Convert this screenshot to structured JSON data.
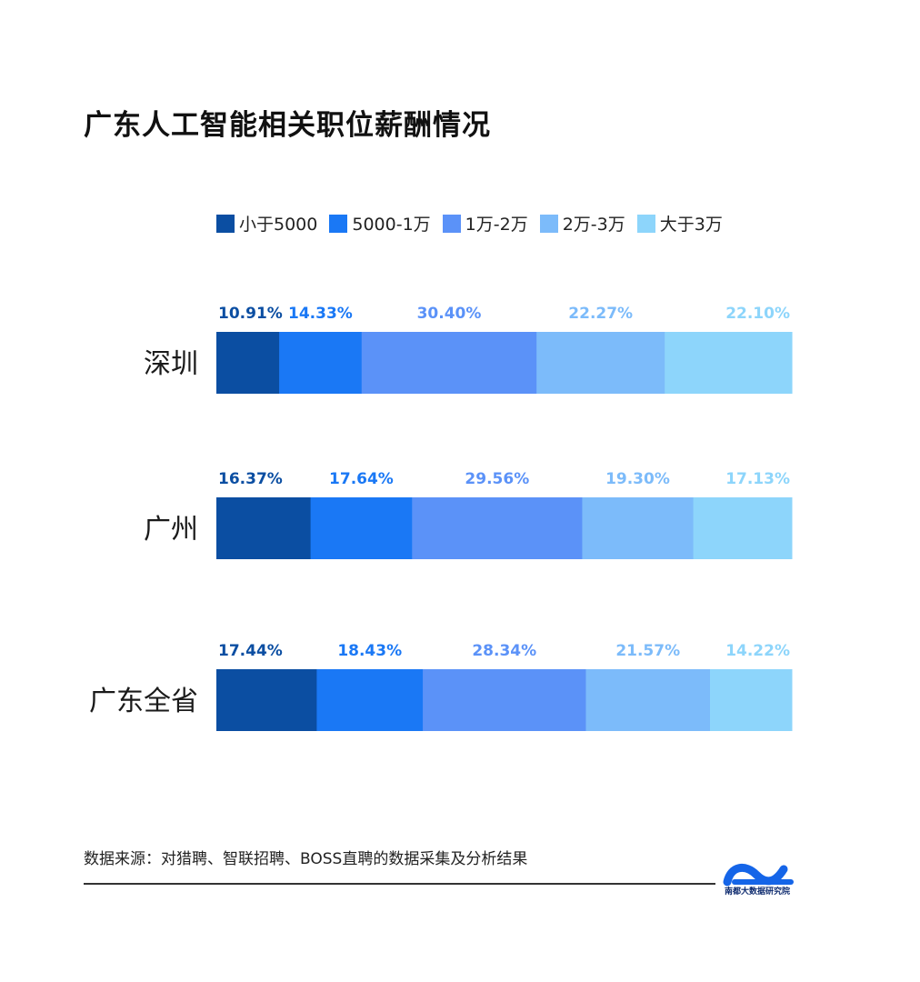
{
  "title": "广东人工智能相关职位薪酬情况",
  "legend": [
    {
      "label": "小于5000",
      "color": "#0b4ea2"
    },
    {
      "label": "5000-1万",
      "color": "#1a78f5"
    },
    {
      "label": "1万-2万",
      "color": "#5b92f8"
    },
    {
      "label": "2万-3万",
      "color": "#7cbbfa"
    },
    {
      "label": "大于3万",
      "color": "#8dd5fb"
    }
  ],
  "label_colors": [
    "#0b4ea2",
    "#1a78f5",
    "#5b92f8",
    "#7cbbfa",
    "#8dd5fb"
  ],
  "chart_data": {
    "type": "bar",
    "orientation": "horizontal",
    "stacked": true,
    "categories": [
      "深圳",
      "广州",
      "广东全省"
    ],
    "series": [
      {
        "name": "小于5000",
        "values": [
          10.91,
          16.37,
          17.44
        ]
      },
      {
        "name": "5000-1万",
        "values": [
          14.33,
          17.64,
          18.43
        ]
      },
      {
        "name": "1万-2万",
        "values": [
          30.4,
          29.56,
          28.34
        ]
      },
      {
        "name": "2万-3万",
        "values": [
          22.27,
          19.3,
          21.57
        ]
      },
      {
        "name": "大于3万",
        "values": [
          22.1,
          17.13,
          14.22
        ]
      }
    ],
    "data_labels": [
      [
        "10.91%",
        "14.33%",
        "30.40%",
        "22.27%",
        "22.10%"
      ],
      [
        "16.37%",
        "17.64%",
        "29.56%",
        "19.30%",
        "17.13%"
      ],
      [
        "17.44%",
        "18.43%",
        "28.34%",
        "21.57%",
        "14.22%"
      ]
    ],
    "xlim": [
      0,
      100
    ],
    "legend_position": "top",
    "grid": false
  },
  "footer": {
    "source": "数据来源：对猎聘、智联招聘、BOSS直聘的数据采集及分析结果",
    "logo_text": "南都大数据研究院"
  }
}
